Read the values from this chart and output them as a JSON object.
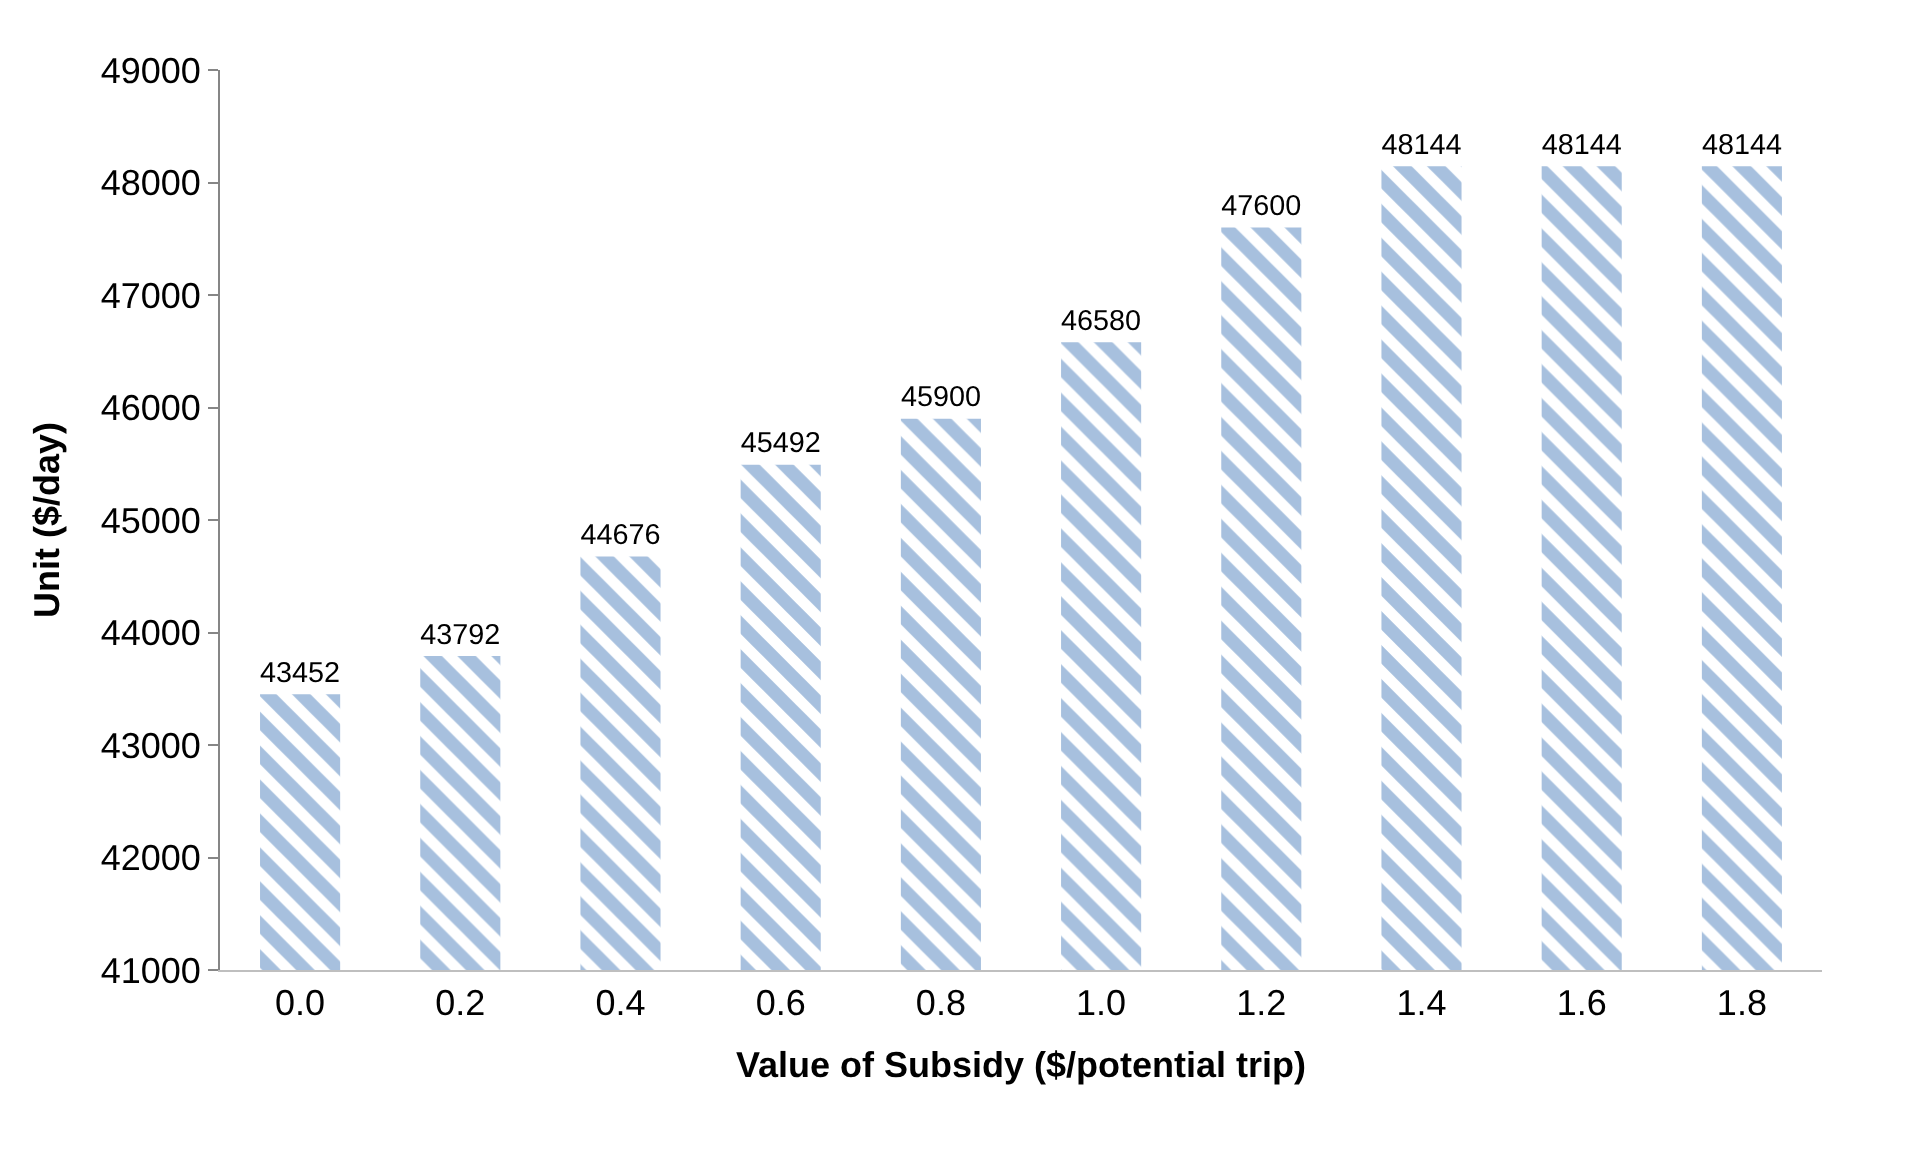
{
  "chart_data": {
    "type": "bar",
    "xlabel": "Value of Subsidy ($/potential trip)",
    "ylabel": "Unit ($/day)",
    "categories": [
      "0.0",
      "0.2",
      "0.4",
      "0.6",
      "0.8",
      "1.0",
      "1.2",
      "1.4",
      "1.6",
      "1.8"
    ],
    "values": [
      43452,
      43792,
      44676,
      45492,
      45900,
      46580,
      47600,
      48144,
      48144,
      48144
    ],
    "color": "#4f81bd",
    "data_labels": true,
    "grid": false,
    "ylim": [
      41000,
      49000
    ],
    "yticks": [
      41000,
      42000,
      43000,
      44000,
      45000,
      46000,
      47000,
      48000,
      49000
    ]
  }
}
